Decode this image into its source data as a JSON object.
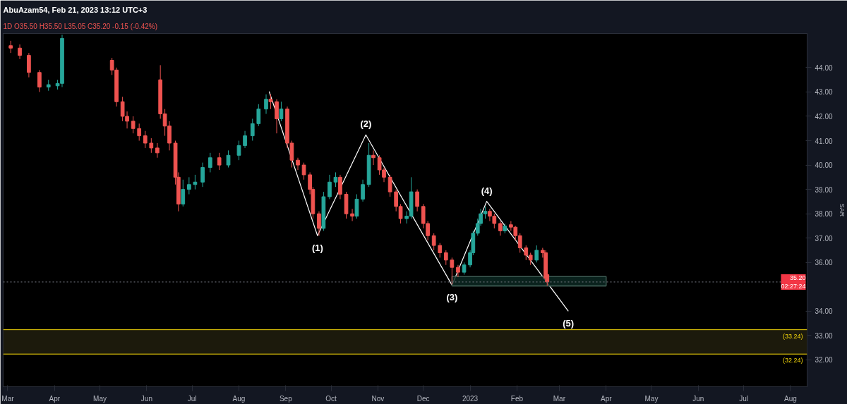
{
  "chart_data": {
    "type": "candlestick",
    "title": "AbuAzam54, Feb 21, 2023 13:12 UTC+3",
    "subtitle": "1D O35.50 H35.50 L35.05 C35.20 -0.15 (-0.42%)",
    "ylabel": "SAR",
    "xlim": [
      "2022-02-26",
      "2023-08-12"
    ],
    "ylim": [
      30.9,
      45.4
    ],
    "xticks": [
      {
        "value": "2022-03-01",
        "label": "Mar"
      },
      {
        "value": "2022-04-01",
        "label": "Apr"
      },
      {
        "value": "2022-05-01",
        "label": "May"
      },
      {
        "value": "2022-06-01",
        "label": "Jun"
      },
      {
        "value": "2022-07-01",
        "label": "Jul"
      },
      {
        "value": "2022-08-01",
        "label": "Aug"
      },
      {
        "value": "2022-09-01",
        "label": "Sep"
      },
      {
        "value": "2022-10-01",
        "label": "Oct"
      },
      {
        "value": "2022-11-01",
        "label": "Nov"
      },
      {
        "value": "2022-12-01",
        "label": "Dec"
      },
      {
        "value": "2023-01-01",
        "label": "2023"
      },
      {
        "value": "2023-02-01",
        "label": "Feb"
      },
      {
        "value": "2023-03-01",
        "label": "Mar"
      },
      {
        "value": "2023-04-01",
        "label": "Apr"
      },
      {
        "value": "2023-05-01",
        "label": "May"
      },
      {
        "value": "2023-06-01",
        "label": "Jun"
      },
      {
        "value": "2023-07-01",
        "label": "Jul"
      },
      {
        "value": "2023-08-01",
        "label": "Aug"
      }
    ],
    "yticks": [
      {
        "value": 32,
        "label": "32.00"
      },
      {
        "value": 33,
        "label": "33.00"
      },
      {
        "value": 34,
        "label": "34.00"
      },
      {
        "value": 36,
        "label": "36.00"
      },
      {
        "value": 37,
        "label": "37.00"
      },
      {
        "value": 38,
        "label": "38.00"
      },
      {
        "value": 39,
        "label": "39.00"
      },
      {
        "value": 40,
        "label": "40.00"
      },
      {
        "value": 41,
        "label": "41.00"
      },
      {
        "value": 42,
        "label": "42.00"
      },
      {
        "value": 43,
        "label": "43.00"
      },
      {
        "value": 44,
        "label": "44.00"
      }
    ],
    "grid": false,
    "series": [
      {
        "color": "#26a69a",
        "x": [
          "2022-03-28",
          "2022-04-03",
          "2022-04-06",
          "2022-06-25",
          "2022-06-29",
          "2022-07-03",
          "2022-07-08",
          "2022-07-13",
          "2022-07-25",
          "2022-08-01",
          "2022-08-05",
          "2022-08-10",
          "2022-08-14",
          "2022-08-19",
          "2022-08-29",
          "2022-09-26",
          "2022-09-30",
          "2022-10-04",
          "2022-10-18",
          "2022-10-22",
          "2022-10-26",
          "2022-11-20",
          "2022-11-23",
          "2022-12-28",
          "2023-01-01",
          "2023-01-03",
          "2023-01-06",
          "2023-01-08",
          "2023-01-11",
          "2023-01-24",
          "2023-02-14"
        ],
        "ohlc": [
          [
            43.2,
            43.5,
            43.05,
            43.3
          ],
          [
            43.25,
            43.5,
            43.1,
            43.35
          ],
          [
            43.35,
            45.35,
            43.2,
            45.2
          ],
          [
            38.4,
            39.4,
            38.3,
            39.0
          ],
          [
            39.0,
            39.5,
            38.8,
            39.2
          ],
          [
            39.2,
            39.6,
            39.0,
            39.3
          ],
          [
            39.3,
            40.1,
            39.1,
            39.9
          ],
          [
            39.9,
            40.5,
            39.7,
            40.3
          ],
          [
            40.0,
            40.6,
            39.9,
            40.4
          ],
          [
            40.4,
            41.0,
            40.2,
            40.8
          ],
          [
            40.8,
            41.4,
            40.7,
            41.2
          ],
          [
            41.2,
            41.9,
            41.0,
            41.7
          ],
          [
            41.7,
            42.5,
            41.6,
            42.3
          ],
          [
            42.3,
            42.9,
            42.1,
            42.7
          ],
          [
            41.9,
            42.6,
            41.8,
            42.3
          ],
          [
            37.4,
            38.9,
            37.3,
            38.7
          ],
          [
            38.7,
            39.6,
            38.6,
            39.3
          ],
          [
            39.3,
            39.7,
            39.1,
            39.5
          ],
          [
            37.9,
            38.8,
            37.8,
            38.6
          ],
          [
            38.6,
            39.4,
            38.5,
            39.2
          ],
          [
            39.2,
            40.9,
            39.1,
            40.4
          ],
          [
            37.8,
            38.1,
            37.6,
            37.9
          ],
          [
            37.9,
            39.5,
            37.8,
            38.9
          ],
          [
            35.6,
            36.0,
            35.5,
            35.9
          ],
          [
            35.9,
            36.5,
            35.8,
            36.4
          ],
          [
            36.4,
            37.3,
            36.3,
            37.2
          ],
          [
            37.2,
            37.8,
            37.1,
            37.6
          ],
          [
            37.6,
            38.2,
            37.5,
            38.0
          ],
          [
            38.0,
            38.3,
            37.8,
            38.1
          ],
          [
            37.3,
            37.6,
            37.2,
            37.5
          ],
          [
            36.1,
            36.7,
            36.0,
            36.5
          ]
        ]
      },
      {
        "color": "#ef5350",
        "x": [
          "2022-03-03",
          "2022-03-09",
          "2022-03-15",
          "2022-03-22",
          "2022-05-09",
          "2022-05-12",
          "2022-05-16",
          "2022-05-19",
          "2022-05-23",
          "2022-05-27",
          "2022-05-31",
          "2022-06-04",
          "2022-06-08",
          "2022-06-10",
          "2022-06-13",
          "2022-06-16",
          "2022-06-20",
          "2022-06-22",
          "2022-07-19",
          "2022-08-22",
          "2022-08-26",
          "2022-09-02",
          "2022-09-05",
          "2022-09-09",
          "2022-09-13",
          "2022-09-17",
          "2022-09-19",
          "2022-09-23",
          "2022-10-07",
          "2022-10-11",
          "2022-10-15",
          "2022-10-29",
          "2022-11-02",
          "2022-11-05",
          "2022-11-09",
          "2022-11-13",
          "2022-11-16",
          "2022-11-27",
          "2022-12-01",
          "2022-12-04",
          "2022-12-08",
          "2022-12-12",
          "2022-12-16",
          "2022-12-20",
          "2022-12-24",
          "2023-01-14",
          "2023-01-17",
          "2023-01-21",
          "2023-01-28",
          "2023-01-31",
          "2023-02-03",
          "2023-02-07",
          "2023-02-10",
          "2023-02-18",
          "2023-02-20",
          "2023-02-21"
        ],
        "ohlc": [
          [
            44.9,
            45.1,
            44.6,
            44.8
          ],
          [
            44.8,
            44.95,
            44.35,
            44.5
          ],
          [
            44.5,
            44.6,
            43.6,
            43.8
          ],
          [
            43.8,
            43.9,
            43.0,
            43.2
          ],
          [
            44.3,
            44.4,
            43.7,
            43.9
          ],
          [
            43.9,
            44.0,
            42.4,
            42.6
          ],
          [
            42.6,
            42.8,
            41.8,
            42.0
          ],
          [
            42.0,
            42.2,
            41.5,
            41.8
          ],
          [
            41.8,
            42.0,
            41.3,
            41.5
          ],
          [
            41.5,
            41.7,
            41.0,
            41.2
          ],
          [
            41.2,
            41.4,
            40.7,
            40.9
          ],
          [
            40.9,
            41.1,
            40.5,
            40.7
          ],
          [
            40.7,
            40.9,
            40.3,
            40.5
          ],
          [
            43.5,
            44.1,
            41.9,
            42.1
          ],
          [
            42.1,
            42.3,
            41.2,
            41.6
          ],
          [
            41.6,
            41.8,
            40.6,
            40.9
          ],
          [
            40.9,
            41.0,
            39.2,
            39.5
          ],
          [
            39.5,
            39.7,
            38.1,
            38.4
          ],
          [
            40.3,
            40.5,
            39.8,
            40.0
          ],
          [
            42.7,
            42.9,
            42.3,
            42.6
          ],
          [
            42.6,
            42.7,
            41.3,
            41.9
          ],
          [
            42.3,
            42.4,
            40.7,
            40.9
          ],
          [
            40.9,
            41.0,
            39.9,
            40.2
          ],
          [
            40.2,
            40.3,
            39.8,
            40.0
          ],
          [
            40.0,
            40.1,
            39.4,
            39.6
          ],
          [
            39.6,
            39.7,
            38.8,
            39.0
          ],
          [
            39.0,
            39.1,
            37.8,
            38.0
          ],
          [
            38.0,
            38.1,
            37.1,
            37.4
          ],
          [
            39.5,
            39.6,
            38.6,
            38.8
          ],
          [
            38.8,
            38.9,
            37.8,
            38.0
          ],
          [
            38.0,
            38.2,
            37.7,
            37.9
          ],
          [
            40.4,
            40.6,
            40.0,
            40.3
          ],
          [
            40.3,
            40.4,
            39.6,
            39.8
          ],
          [
            39.8,
            39.9,
            39.3,
            39.5
          ],
          [
            39.5,
            39.6,
            38.7,
            38.9
          ],
          [
            38.9,
            39.0,
            38.1,
            38.3
          ],
          [
            38.3,
            38.4,
            37.6,
            37.8
          ],
          [
            38.9,
            39.0,
            38.1,
            38.3
          ],
          [
            38.3,
            38.4,
            37.4,
            37.6
          ],
          [
            37.6,
            37.7,
            36.9,
            37.1
          ],
          [
            37.1,
            37.2,
            36.5,
            36.7
          ],
          [
            36.7,
            36.8,
            36.2,
            36.4
          ],
          [
            36.4,
            36.5,
            35.9,
            36.1
          ],
          [
            36.1,
            36.2,
            35.1,
            35.8
          ],
          [
            35.8,
            35.9,
            35.4,
            35.6
          ],
          [
            38.1,
            38.2,
            37.7,
            37.9
          ],
          [
            37.9,
            38.0,
            37.4,
            37.6
          ],
          [
            37.6,
            37.7,
            37.1,
            37.3
          ],
          [
            37.55,
            37.7,
            37.3,
            37.45
          ],
          [
            37.45,
            37.5,
            36.9,
            37.1
          ],
          [
            37.1,
            37.2,
            36.4,
            36.6
          ],
          [
            36.6,
            36.7,
            36.1,
            36.3
          ],
          [
            36.3,
            36.4,
            35.9,
            36.1
          ],
          [
            36.5,
            36.6,
            36.2,
            36.4
          ],
          [
            36.4,
            36.5,
            35.2,
            35.35
          ],
          [
            35.5,
            35.5,
            35.05,
            35.2
          ]
        ]
      },
      {
        "type": "line",
        "color": "#ffffff",
        "x": [
          "2022-08-21",
          "2022-09-22",
          "2022-10-24",
          "2022-12-20",
          "2023-01-12",
          "2023-03-07"
        ],
        "values": [
          43.02,
          37.1,
          41.24,
          35.07,
          38.51,
          34.0
        ]
      },
      {
        "type": "line",
        "color": "#3c5a52",
        "x": [
          "2022-12-20",
          "2023-04-01"
        ],
        "values": [
          35.04,
          35.04
        ],
        "lower": [
          35.04,
          35.04
        ],
        "upper": [
          35.42,
          35.42
        ]
      }
    ],
    "ref_lines": [
      {
        "axis": "y",
        "value": 33.24,
        "label": "(33.24)",
        "color": "#f5d90a",
        "line_style": "solid"
      },
      {
        "axis": "y",
        "value": 32.24,
        "label": "(32.24)",
        "color": "#f5d90a",
        "line_style": "solid"
      },
      {
        "axis": "y",
        "value": 35.2,
        "label": "35.20\n02:27:24",
        "color": "#787b86",
        "line_style": "dotted"
      }
    ],
    "bands": [
      {
        "axis": "y",
        "from": 32.24,
        "to": 33.24,
        "color": "#1c1a0c"
      }
    ],
    "annotations": [
      "(1)",
      "(2)",
      "(3)",
      "(4)",
      "(5)"
    ]
  }
}
